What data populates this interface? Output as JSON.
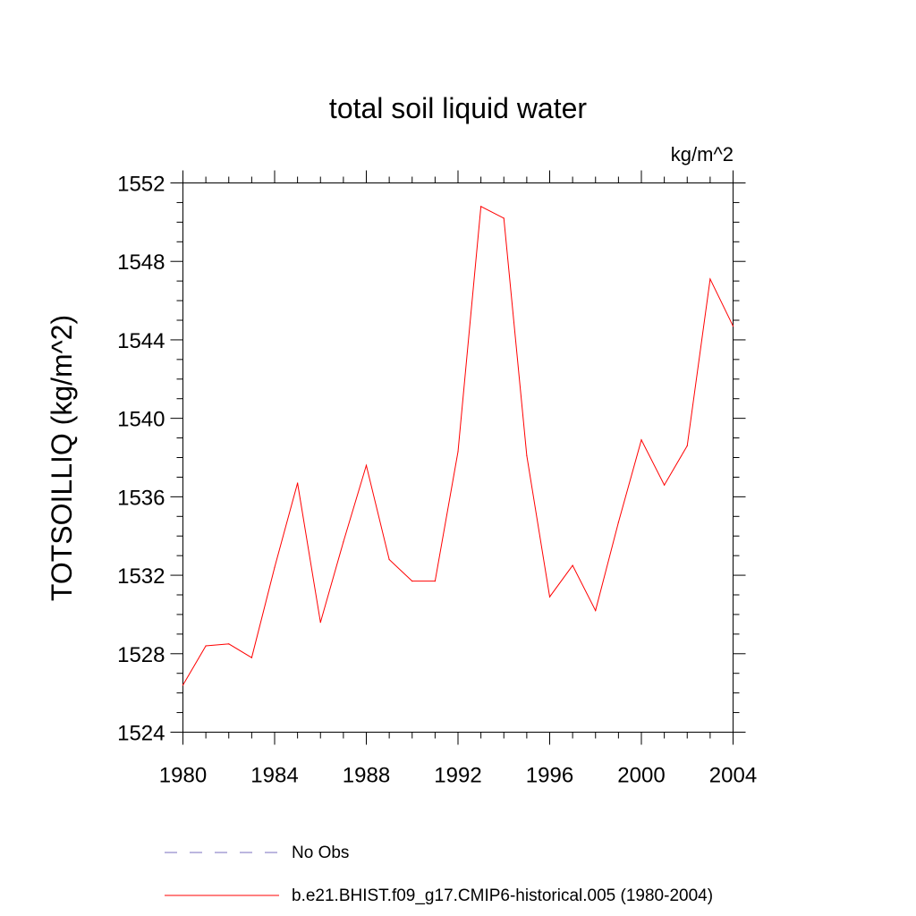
{
  "chart_data": {
    "type": "line",
    "title": "total soil liquid water",
    "units_label": "kg/m^2",
    "ylabel": "TOTSOILLIQ  (kg/m^2)",
    "xlabel": "",
    "xlim": [
      1980,
      2004
    ],
    "ylim": [
      1524,
      1552
    ],
    "x_ticks": [
      1980,
      1984,
      1988,
      1992,
      1996,
      2000,
      2004
    ],
    "y_ticks": [
      1524,
      1528,
      1532,
      1536,
      1540,
      1544,
      1548,
      1552
    ],
    "x_ticks_text": [
      "1980",
      "1984",
      "1988",
      "1992",
      "1996",
      "2000",
      "2004"
    ],
    "y_ticks_text": [
      "1524",
      "1528",
      "1532",
      "1536",
      "1540",
      "1544",
      "1548",
      "1552"
    ],
    "series": [
      {
        "name": "b.e21.BHIST.f09_g17.CMIP6-historical.005 (1980-2004)",
        "color": "#ff0000",
        "style": "solid",
        "x": [
          1980,
          1981,
          1982,
          1983,
          1984,
          1985,
          1986,
          1987,
          1988,
          1989,
          1990,
          1991,
          1992,
          1993,
          1994,
          1995,
          1996,
          1997,
          1998,
          1999,
          2000,
          2001,
          2002,
          2003,
          2004
        ],
        "values": [
          1526.4,
          1528.4,
          1528.5,
          1527.8,
          1532.4,
          1536.7,
          1529.6,
          1533.7,
          1537.6,
          1532.8,
          1531.7,
          1531.7,
          1538.3,
          1550.8,
          1550.2,
          1538.1,
          1530.9,
          1532.5,
          1530.2,
          1534.7,
          1538.9,
          1536.6,
          1538.6,
          1547.1,
          1544.7
        ]
      }
    ],
    "legend": [
      {
        "label": "No Obs",
        "color": "#7a6fbf",
        "style": "dashed"
      },
      {
        "label": "b.e21.BHIST.f09_g17.CMIP6-historical.005 (1980-2004)",
        "color": "#ff0000",
        "style": "solid"
      }
    ]
  }
}
